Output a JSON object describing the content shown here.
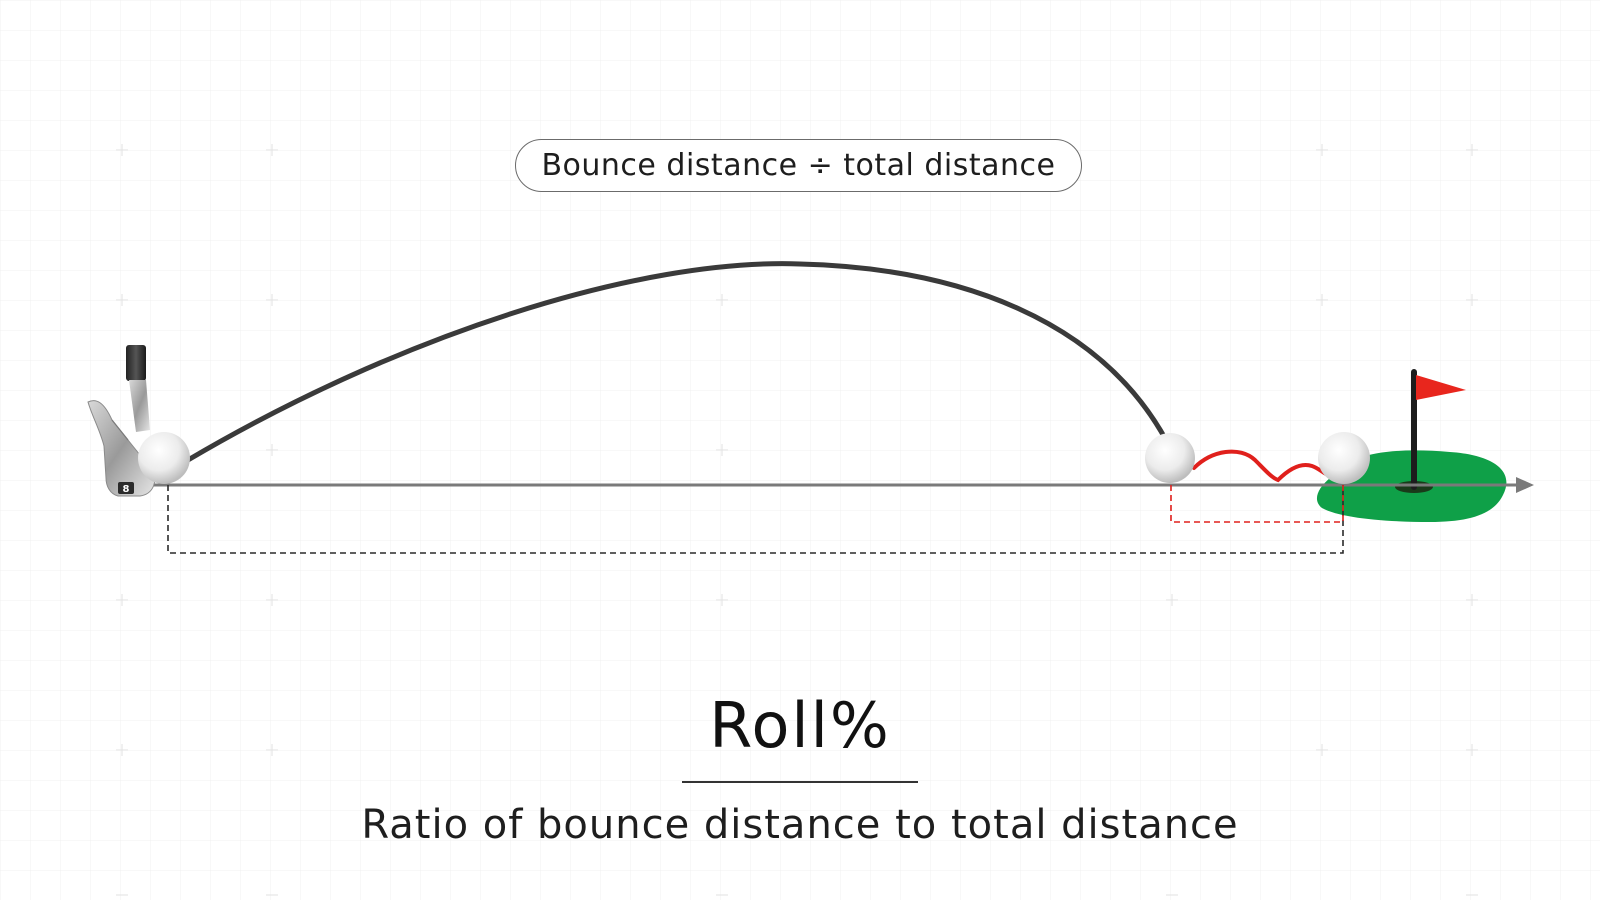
{
  "formula": "Bounce distance ÷ total distance",
  "title": "Roll%",
  "subtitle": "Ratio of bounce distance to total distance",
  "club_badge": "8",
  "colors": {
    "flight_path": "#3a3a3a",
    "bounce_path": "#e0201c",
    "ground_line": "#7a7a7a",
    "total_distance_bracket": "#2a2a2a",
    "bounce_distance_bracket": "#e0201c",
    "green": "#0fa048",
    "flag": "#e8261d",
    "grid": "#ececec"
  },
  "icons": [
    "golf-club-icon",
    "golf-ball-icon",
    "flag-icon",
    "putting-green-icon",
    "arrow-right-icon"
  ]
}
